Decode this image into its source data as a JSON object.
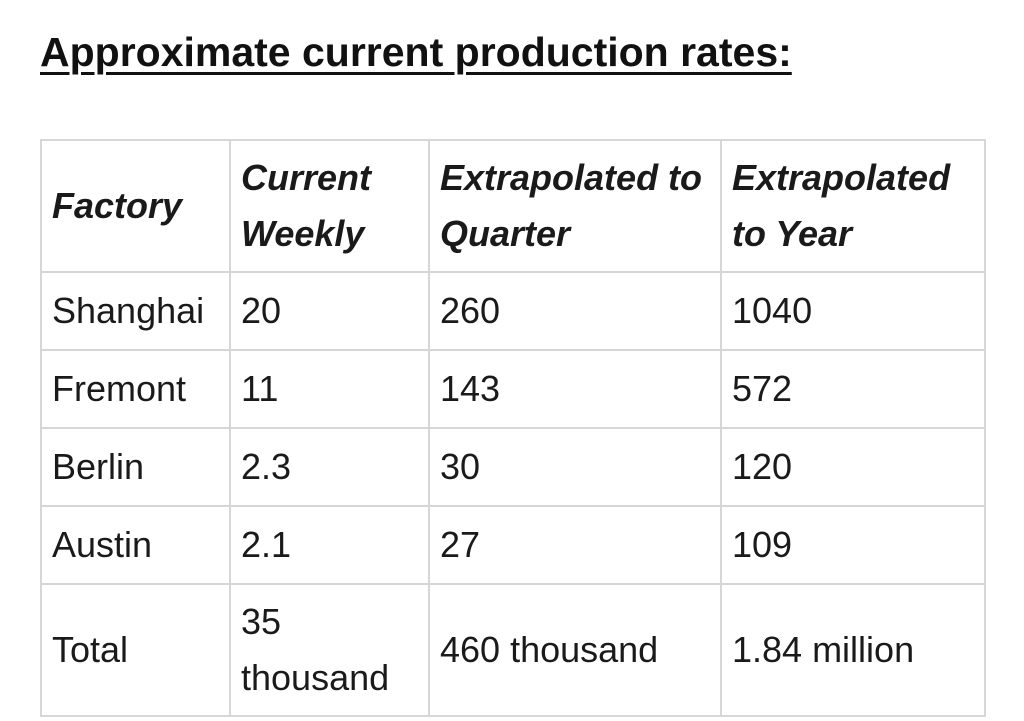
{
  "title": "Approximate current production rates:",
  "table": {
    "headers": [
      "Factory",
      "Current Weekly",
      "Extrapolated to Quarter",
      "Extrapolated to Year"
    ],
    "rows": [
      [
        "Shanghai",
        "20",
        "260",
        "1040"
      ],
      [
        "Fremont",
        "11",
        "143",
        "572"
      ],
      [
        "Berlin",
        "2.3",
        "30",
        "120"
      ],
      [
        "Austin",
        "2.1",
        "27",
        "109"
      ],
      [
        "Total",
        "35 thousand",
        "460 thousand",
        "1.84 million"
      ]
    ]
  }
}
